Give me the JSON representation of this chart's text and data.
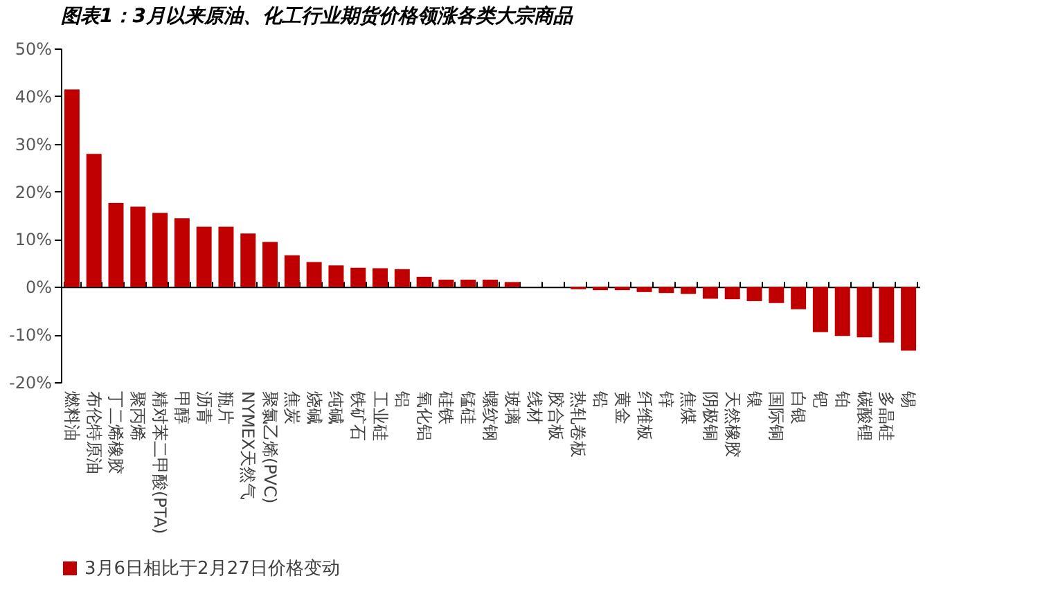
{
  "chart_data": {
    "type": "bar",
    "title": "图表1：3月以来原油、化工行业期货价格领涨各类大宗商品",
    "categories": [
      "燃料油",
      "布伦特原油",
      "丁二烯橡胶",
      "聚丙烯",
      "精对苯二甲酸(PTA)",
      "甲醇",
      "沥青",
      "瓶片",
      "NYMEX天然气",
      "聚氯乙烯(PVC)",
      "焦炭",
      "烧碱",
      "纯碱",
      "铁矿石",
      "工业硅",
      "铝",
      "氧化铝",
      "硅铁",
      "锰硅",
      "螺纹钢",
      "玻璃",
      "线材",
      "胶合板",
      "热轧卷板",
      "铅",
      "黄金",
      "纤维板",
      "锌",
      "焦煤",
      "阴极铜",
      "天然橡胶",
      "镍",
      "国际铜",
      "白银",
      "钯",
      "铂",
      "碳酸锂",
      "多晶硅",
      "锡"
    ],
    "series": [
      {
        "name": "3月6日相比于2月27日价格变动",
        "color": "#c00000",
        "values": [
          41.4,
          27.9,
          17.6,
          16.8,
          15.5,
          14.4,
          12.6,
          12.6,
          11.2,
          9.4,
          6.6,
          5.2,
          4.5,
          4.0,
          3.9,
          3.7,
          2.1,
          1.5,
          1.5,
          1.5,
          1.0,
          0,
          0,
          -0.5,
          -0.7,
          -0.7,
          -1.1,
          -1.3,
          -1.5,
          -2.5,
          -2.6,
          -3.0,
          -3.4,
          -4.7,
          -9.5,
          -10.3,
          -10.6,
          -11.7,
          -13.4
        ]
      }
    ],
    "ylim": [
      -20,
      50
    ],
    "yticks": [
      {
        "value": -20,
        "label": "-20%"
      },
      {
        "value": -10,
        "label": "-10%"
      },
      {
        "value": 0,
        "label": "0%"
      },
      {
        "value": 10,
        "label": "10%"
      },
      {
        "value": 20,
        "label": "20%"
      },
      {
        "value": 30,
        "label": "30%"
      },
      {
        "value": 40,
        "label": "40%"
      },
      {
        "value": 50,
        "label": "50%"
      }
    ],
    "legend": "bottom"
  }
}
